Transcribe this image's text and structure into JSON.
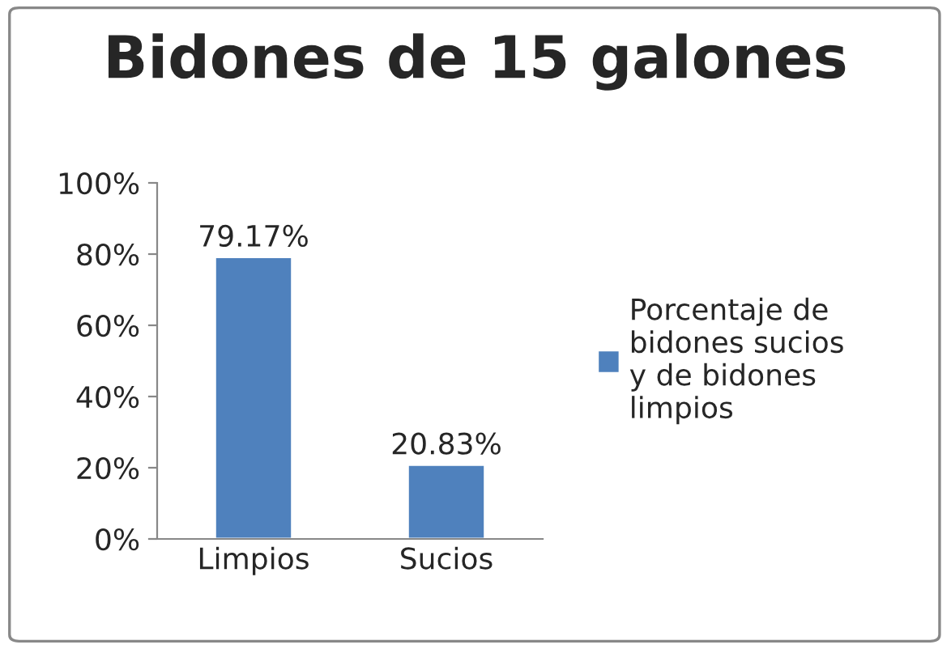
{
  "chart_data": {
    "type": "bar",
    "title": "Bidones de 15 galones",
    "categories": [
      "Limpios",
      "Sucios"
    ],
    "series": [
      {
        "name": "Porcentaje de\nbidones sucios\ny de bidones\nlimpios",
        "color": "#4f81bd",
        "values": [
          79.17,
          20.83
        ],
        "value_labels": [
          "79.17%",
          "20.83%"
        ]
      }
    ],
    "ylim": [
      0,
      100
    ],
    "yticks": [
      {
        "value": 0,
        "label": "0%"
      },
      {
        "value": 20,
        "label": "20%"
      },
      {
        "value": 40,
        "label": "40%"
      },
      {
        "value": 60,
        "label": "60%"
      },
      {
        "value": 80,
        "label": "80%"
      },
      {
        "value": 100,
        "label": "100%"
      }
    ],
    "grid": false,
    "legend": "right"
  }
}
